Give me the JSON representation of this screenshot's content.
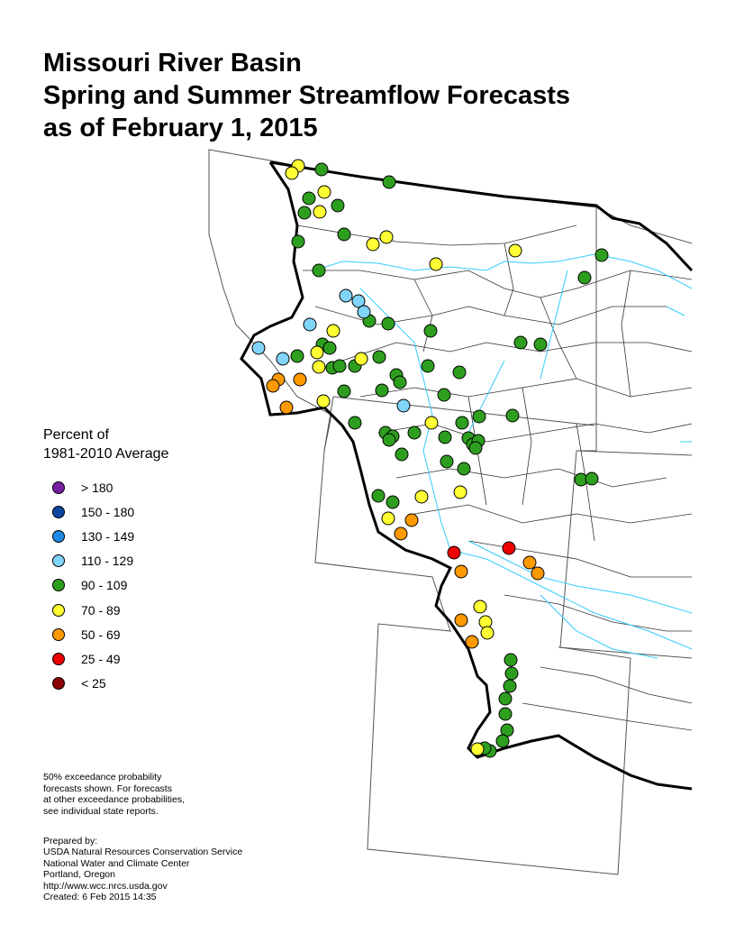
{
  "title": {
    "line1": "Missouri River Basin",
    "line2": "Spring and Summer Streamflow Forecasts",
    "line3": "as of February 1, 2015"
  },
  "legend": {
    "title_line1": "Percent of",
    "title_line2": "1981-2010 Average",
    "items": [
      {
        "label": "> 180",
        "color": "#7B1FA2"
      },
      {
        "label": "150 - 180",
        "color": "#0D47A1"
      },
      {
        "label": "130 - 149",
        "color": "#1E88E5"
      },
      {
        "label": "110 - 129",
        "color": "#81D4FA"
      },
      {
        "label": "90 - 109",
        "color": "#2E9E1F"
      },
      {
        "label": "70 - 89",
        "color": "#FFFF33"
      },
      {
        "label": "50 - 69",
        "color": "#FF9900"
      },
      {
        "label": "25 - 49",
        "color": "#EE0000"
      },
      {
        "label": "< 25",
        "color": "#8B0000"
      }
    ]
  },
  "note": {
    "line1": "50% exceedance probability",
    "line2": "forecasts shown.  For forecasts",
    "line3": "at other exceedance probabilities,",
    "line4": "see individual state reports."
  },
  "prepared": {
    "line1": "Prepared by:",
    "line2": "USDA Natural Resources Conservation Service",
    "line3": "National Water and Climate Center",
    "line4": "Portland, Oregon",
    "line5": "http://www.wcc.nrcs.usda.gov",
    "line6": "Created:    6 Feb 2015   14:35"
  }
}
